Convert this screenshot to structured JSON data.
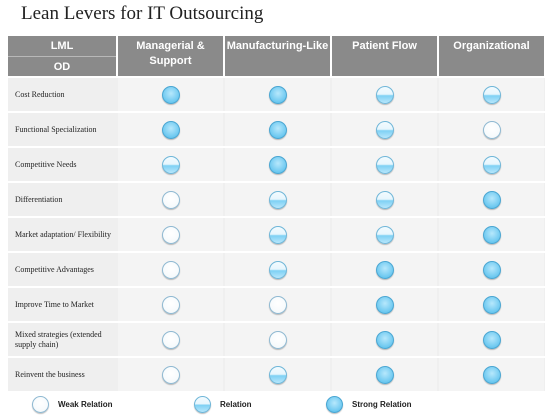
{
  "title": "Lean Levers for IT Outsourcing",
  "header": {
    "row_label_top": "LML",
    "row_label_bottom": "OD",
    "columns": [
      {
        "label": "Managerial & Support"
      },
      {
        "label": "Manufacturing-Like"
      },
      {
        "label": "Patient Flow"
      },
      {
        "label": "Organizational"
      }
    ]
  },
  "rows": [
    {
      "label": "Cost Reduction",
      "values": [
        "strong",
        "strong",
        "relation",
        "relation"
      ]
    },
    {
      "label": "Functional Specialization",
      "values": [
        "strong",
        "strong",
        "relation",
        "weak"
      ]
    },
    {
      "label": "Competitive Needs",
      "values": [
        "relation",
        "strong",
        "relation",
        "relation"
      ]
    },
    {
      "label": "Differentiation",
      "values": [
        "weak",
        "relation",
        "relation",
        "strong"
      ]
    },
    {
      "label": "Market adaptation/ Flexibility",
      "values": [
        "weak",
        "relation",
        "relation",
        "strong"
      ]
    },
    {
      "label": "Competitive Advantages",
      "values": [
        "weak",
        "relation",
        "strong",
        "strong"
      ]
    },
    {
      "label": "Improve Time to Market",
      "values": [
        "weak",
        "weak",
        "strong",
        "strong"
      ]
    },
    {
      "label": "Mixed strategies (extended supply chain)",
      "values": [
        "weak",
        "weak",
        "strong",
        "strong"
      ]
    },
    {
      "label": "Reinvent the business",
      "values": [
        "weak",
        "relation",
        "strong",
        "strong"
      ]
    }
  ],
  "legend": [
    {
      "level": "weak",
      "label": "Weak Relation"
    },
    {
      "level": "relation",
      "label": "Relation"
    },
    {
      "level": "strong",
      "label": "Strong Relation"
    }
  ],
  "colors": {
    "header_bg": "#8a8a8a",
    "row_bg": "#efefef",
    "strong_fill": "#6cc8f0",
    "relation_fill": "#7fd1f4",
    "weak_fill": "#ffffff"
  }
}
